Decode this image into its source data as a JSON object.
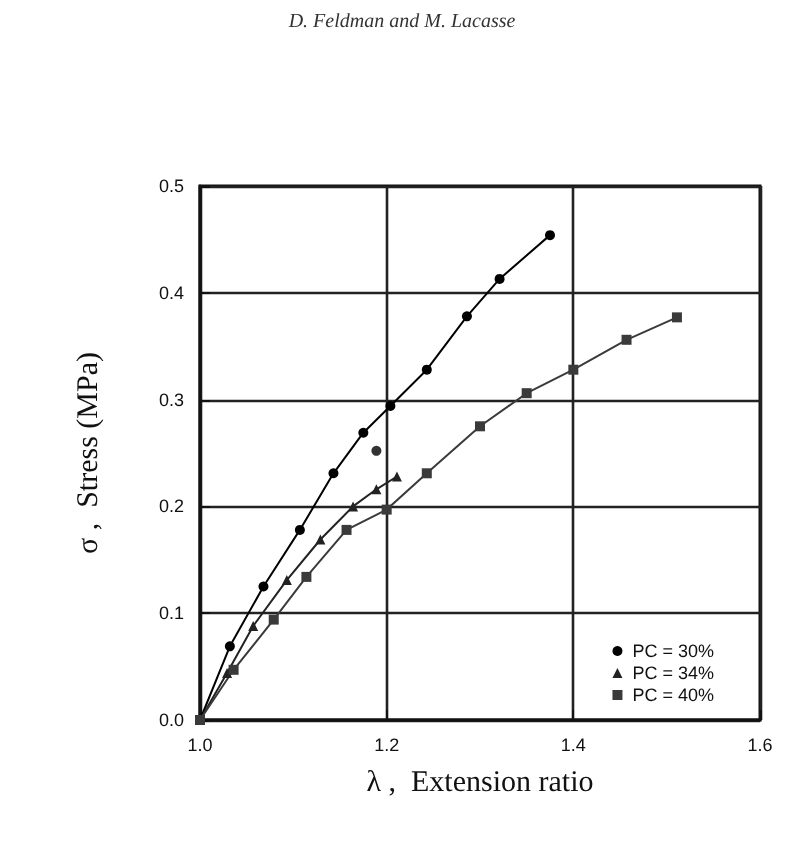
{
  "chart_data": {
    "type": "line",
    "xlabel": "λ ,  Extension ratio",
    "ylabel": "σ ,  Stress (MPa)",
    "annotations": [
      "D. Feldman and M. Lacasse"
    ],
    "xlim": [
      1.0,
      1.6
    ],
    "xticks": [
      {
        "value": 1.0,
        "label": "1.0"
      },
      {
        "value": 1.2,
        "label": "1.2"
      },
      {
        "value": 1.4,
        "label": "1.4"
      },
      {
        "value": 1.6,
        "label": "1.6"
      }
    ],
    "ylim": [
      0,
      0.5
    ],
    "yticks": [
      {
        "value": 0,
        "label": "0.0"
      },
      0.1,
      0.2,
      0.3,
      0.4,
      0.5
    ],
    "grid": true,
    "legend": "bottom right",
    "series": [
      {
        "name": "PC = 30%",
        "color": "#000000",
        "marker": "circle",
        "x": [
          1.0,
          1.032,
          1.068,
          1.107,
          1.143,
          1.175,
          1.204,
          1.243,
          1.286,
          1.321,
          1.375
        ],
        "values": [
          0,
          0.069,
          0.125,
          0.178,
          0.231,
          0.269,
          0.294,
          0.328,
          0.378,
          0.413,
          0.454
        ]
      },
      {
        "name": "PC = 34%",
        "color": "#222222",
        "marker": "triangle",
        "x": [
          1.0,
          1.029,
          1.057,
          1.093,
          1.129,
          1.164,
          1.189,
          1.211
        ],
        "values": [
          0,
          0.044,
          0.088,
          0.131,
          0.169,
          0.2,
          0.216,
          0.228
        ]
      },
      {
        "name": "PC = 40%",
        "color": "#3a3a3a",
        "marker": "square",
        "x": [
          1.0,
          1.036,
          1.079,
          1.114,
          1.157,
          1.2,
          1.243,
          1.3,
          1.35,
          1.4,
          1.457,
          1.511
        ],
        "values": [
          0,
          0.047,
          0.094,
          0.134,
          0.178,
          0.197,
          0.231,
          0.275,
          0.306,
          0.328,
          0.356,
          0.377
        ]
      },
      {
        "type": "scatter",
        "color": "#000000",
        "marker": "circle",
        "x": [
          1.189
        ],
        "values": [
          0.252
        ]
      }
    ]
  }
}
